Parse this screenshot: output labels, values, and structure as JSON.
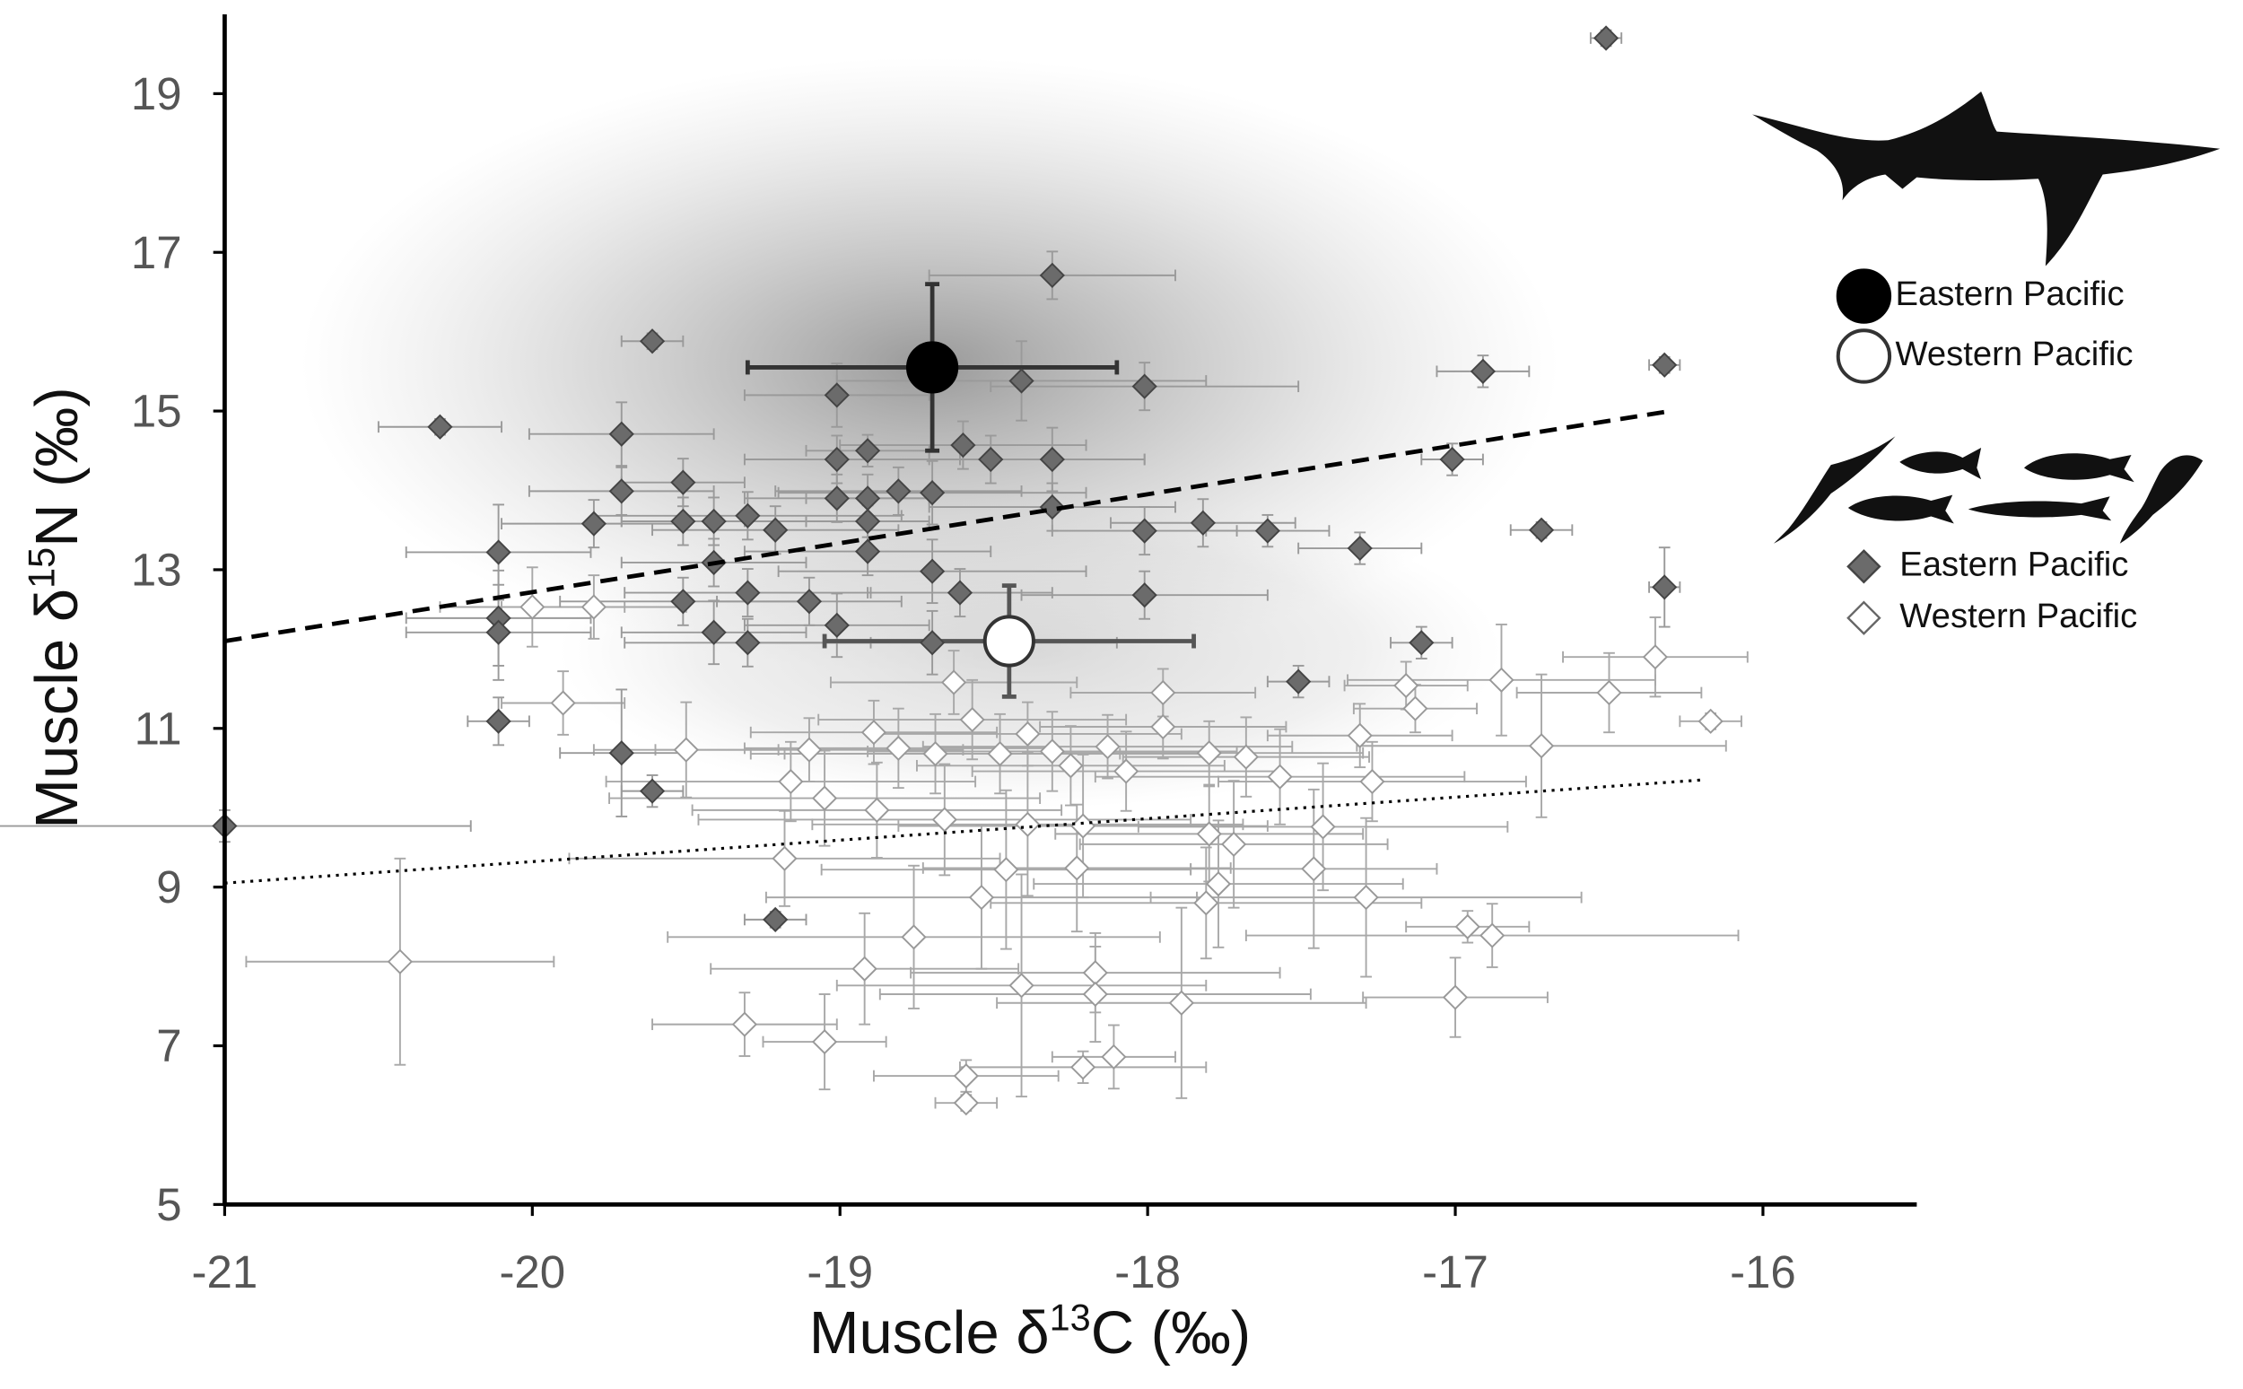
{
  "chart_data": {
    "type": "scatter",
    "xlabel": [
      "Muscle δ",
      "13",
      "C (‰)"
    ],
    "ylabel": [
      "Muscle δ",
      "15",
      "N (‰)"
    ],
    "xlim": [
      -21,
      -15.5
    ],
    "ylim": [
      5,
      20
    ],
    "xticks": [
      -21,
      -20,
      -19,
      -18,
      -17,
      -16
    ],
    "yticks": [
      5,
      7,
      9,
      11,
      13,
      15,
      17,
      19
    ],
    "series": [
      {
        "name": "Eastern Pacific",
        "marker": "circle",
        "color": "#000000",
        "edgecolor": "#000000",
        "errcolor": "#333333",
        "x": [
          -18.7
        ],
        "values": [
          15.55
        ],
        "xerr": [
          0.6
        ],
        "yerr": [
          1.05
        ]
      },
      {
        "name": "Western Pacific",
        "marker": "circle",
        "color": "#ffffff",
        "edgecolor": "#333333",
        "errcolor": "#555555",
        "x": [
          -18.45
        ],
        "values": [
          12.1
        ],
        "xerr": [
          0.6
        ],
        "yerr": [
          0.7
        ]
      },
      {
        "name": "Eastern Pacific",
        "marker": "diamond",
        "color": "#6b6b6b",
        "edgecolor": "#444444",
        "errcolor": "#9a9a9a",
        "x": [
          -16.51,
          -18.31,
          -19.61,
          -20.3,
          -16.32,
          -16.91,
          -18.41,
          -19.01,
          -18.01,
          -19.71,
          -18.91,
          -18.6,
          -18.51,
          -18.31,
          -17.01,
          -19.01,
          -19.51,
          -19.71,
          -18.81,
          -18.7,
          -18.91,
          -19.01,
          -18.31,
          -19.8,
          -19.51,
          -19.41,
          -19.3,
          -18.91,
          -17.82,
          -19.21,
          -18.01,
          -17.61,
          -16.72,
          -17.31,
          -20.11,
          -18.91,
          -19.41,
          -18.7,
          -18.61,
          -19.3,
          -18.01,
          -16.32,
          -19.1,
          -19.51,
          -20.11,
          -19.01,
          -19.41,
          -20.11,
          -19.3,
          -18.7,
          -17.11,
          -17.51,
          -20.11,
          -19.71,
          -19.61,
          -21.0,
          -19.21
        ],
        "values": [
          19.7,
          16.71,
          15.88,
          14.8,
          15.58,
          15.5,
          15.38,
          15.2,
          15.31,
          14.71,
          14.5,
          14.57,
          14.39,
          14.39,
          14.39,
          14.39,
          14.1,
          13.99,
          13.99,
          13.97,
          13.9,
          13.9,
          13.79,
          13.58,
          13.61,
          13.61,
          13.68,
          13.61,
          13.59,
          13.5,
          13.49,
          13.49,
          13.5,
          13.27,
          13.22,
          13.23,
          13.09,
          12.98,
          12.71,
          12.71,
          12.68,
          12.78,
          12.6,
          12.6,
          12.39,
          12.3,
          12.21,
          12.21,
          12.08,
          12.08,
          12.08,
          11.59,
          11.09,
          10.69,
          10.21,
          9.77,
          8.59
        ],
        "xerr": [
          0.05,
          0.4,
          0.1,
          0.2,
          0.05,
          0.15,
          0.6,
          0.3,
          0.5,
          0.3,
          0.2,
          0.4,
          0.5,
          0.3,
          0.1,
          0.3,
          0.2,
          0.3,
          0.4,
          0.5,
          0.2,
          0.3,
          0.4,
          0.3,
          0.2,
          0.3,
          0.5,
          0.2,
          0.3,
          0.4,
          0.3,
          0.2,
          0.1,
          0.2,
          0.3,
          0.4,
          0.3,
          0.5,
          0.3,
          0.4,
          0.4,
          0.05,
          0.3,
          0.4,
          0.3,
          0.3,
          0.3,
          0.3,
          0.4,
          0.6,
          0.1,
          0.1,
          0.1,
          0.2,
          0.1,
          0.8,
          0.1
        ],
        "yerr": [
          0.1,
          0.3,
          0.1,
          0.1,
          0.1,
          0.2,
          0.5,
          0.4,
          0.3,
          0.4,
          0.2,
          0.3,
          0.3,
          0.4,
          0.2,
          0.3,
          0.3,
          0.3,
          0.3,
          0.4,
          0.3,
          0.3,
          0.3,
          0.3,
          0.3,
          0.3,
          0.3,
          0.2,
          0.3,
          0.3,
          0.3,
          0.2,
          0.1,
          0.2,
          0.6,
          0.3,
          0.3,
          0.4,
          0.3,
          0.3,
          0.3,
          0.5,
          0.3,
          0.3,
          0.6,
          0.4,
          0.4,
          0.6,
          0.3,
          0.4,
          0.2,
          0.2,
          0.3,
          0.8,
          0.2,
          0.2,
          0.1
        ]
      },
      {
        "name": "Western Pacific",
        "marker": "diamond",
        "color": "#ffffff",
        "edgecolor": "#999999",
        "errcolor": "#a8a8a8",
        "x": [
          -20.0,
          -19.8,
          -19.9,
          -19.5,
          -19.1,
          -19.16,
          -19.05,
          -18.89,
          -18.81,
          -18.69,
          -18.63,
          -18.57,
          -18.48,
          -18.39,
          -18.31,
          -18.25,
          -18.13,
          -18.07,
          -17.95,
          -17.95,
          -17.8,
          -17.68,
          -17.57,
          -17.27,
          -17.31,
          -17.16,
          -17.13,
          -16.85,
          -16.72,
          -16.5,
          -16.35,
          -16.17,
          -19.18,
          -18.88,
          -18.66,
          -18.39,
          -18.21,
          -17.8,
          -17.72,
          -17.43,
          -17.46,
          -17.77,
          -17.81,
          -18.54,
          -18.46,
          -18.23,
          -17.29,
          -18.76,
          -18.92,
          -18.41,
          -18.17,
          -18.17,
          -17.89,
          -16.96,
          -16.88,
          -17.0,
          -20.43,
          -19.31,
          -19.05,
          -18.11,
          -18.21,
          -18.59,
          -18.59
        ],
        "values": [
          12.53,
          12.53,
          11.32,
          10.73,
          10.73,
          10.33,
          10.12,
          10.95,
          10.75,
          10.68,
          11.58,
          11.11,
          10.68,
          10.93,
          10.71,
          10.53,
          10.77,
          10.46,
          11.45,
          11.02,
          10.69,
          10.64,
          10.39,
          10.33,
          10.91,
          11.54,
          11.25,
          11.61,
          10.78,
          11.45,
          11.9,
          11.09,
          9.36,
          9.97,
          9.85,
          9.79,
          9.77,
          9.67,
          9.54,
          9.76,
          9.23,
          9.04,
          8.8,
          8.87,
          9.22,
          9.24,
          8.87,
          8.37,
          7.97,
          7.76,
          7.92,
          7.65,
          7.54,
          8.5,
          8.39,
          7.61,
          8.06,
          7.27,
          7.05,
          6.86,
          6.73,
          6.62,
          6.28
        ],
        "xerr": [
          0.3,
          0.3,
          0.2,
          0.3,
          0.5,
          0.6,
          0.7,
          0.4,
          0.5,
          0.6,
          0.4,
          0.5,
          0.7,
          0.5,
          0.6,
          0.5,
          0.6,
          0.5,
          0.3,
          0.4,
          0.5,
          0.4,
          0.6,
          0.5,
          0.3,
          0.2,
          0.2,
          0.5,
          0.6,
          0.3,
          0.3,
          0.1,
          0.7,
          0.6,
          0.8,
          0.7,
          0.6,
          0.5,
          0.5,
          0.6,
          0.4,
          0.6,
          0.7,
          0.7,
          0.6,
          0.5,
          0.7,
          0.8,
          0.5,
          0.6,
          0.6,
          0.7,
          0.6,
          0.2,
          0.8,
          0.3,
          0.5,
          0.3,
          0.2,
          0.2,
          0.4,
          0.3,
          0.1
        ],
        "yerr": [
          0.5,
          0.4,
          0.4,
          0.6,
          0.4,
          0.5,
          0.6,
          0.4,
          0.5,
          0.5,
          0.4,
          0.5,
          0.5,
          0.4,
          0.5,
          0.5,
          0.4,
          0.5,
          0.3,
          0.4,
          0.4,
          0.5,
          0.6,
          0.5,
          0.4,
          0.3,
          0.3,
          0.7,
          0.9,
          0.5,
          0.5,
          0.1,
          0.6,
          0.6,
          0.7,
          0.9,
          0.9,
          0.6,
          0.8,
          0.8,
          1.0,
          0.8,
          0.7,
          0.9,
          1.0,
          0.8,
          1.0,
          0.9,
          0.7,
          1.4,
          0.5,
          0.6,
          1.2,
          0.2,
          0.4,
          0.5,
          1.3,
          0.4,
          0.6,
          0.4,
          0.2,
          0.2,
          0.1
        ]
      }
    ],
    "lines": [
      {
        "style": "dashed",
        "color": "#000000",
        "x": [
          -21,
          -16.3
        ],
        "values": [
          12.1,
          15.0
        ]
      },
      {
        "style": "dotted",
        "color": "#000000",
        "x": [
          -21,
          -16.2
        ],
        "values": [
          9.05,
          10.35
        ]
      }
    ]
  }
}
